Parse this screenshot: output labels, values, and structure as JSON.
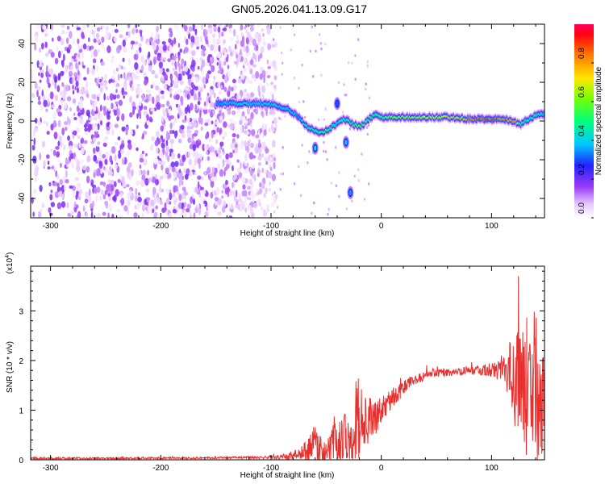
{
  "title": "GN05.2026.041.13.09.G17",
  "chart_data": [
    {
      "type": "heatmap",
      "name": "spectrogram",
      "xlabel": "Height of straight line (km)",
      "ylabel": "Frequency (Hz)",
      "xlim": [
        -318,
        148
      ],
      "ylim": [
        -50,
        50
      ],
      "xticks": [
        -300,
        -200,
        -100,
        0,
        100
      ],
      "yticks": [
        -40,
        -20,
        0,
        20,
        40
      ],
      "colorbar": {
        "label": "Normalized spectral amplitude",
        "range": [
          0,
          1
        ],
        "ticks": [
          "0.0",
          "0.2",
          "0.4",
          "0.6",
          "0.8"
        ],
        "tick_values": [
          0.0,
          0.2,
          0.4,
          0.6,
          0.8
        ]
      },
      "noise_region_x": [
        -318,
        -95
      ],
      "signal_track": {
        "x": [
          -150,
          -130,
          -110,
          -95,
          -85,
          -75,
          -68,
          -60,
          -55,
          -50,
          -45,
          -40,
          -35,
          -30,
          -25,
          -20,
          -15,
          -10,
          -5,
          0,
          20,
          40,
          60,
          80,
          100,
          110,
          120,
          125,
          130,
          140,
          148
        ],
        "freq": [
          9,
          9,
          9,
          8,
          6,
          2,
          -3,
          -5,
          -6,
          -5,
          -3,
          -1,
          1,
          0,
          -2,
          -3,
          -1,
          2,
          3,
          2,
          2,
          2,
          2,
          1,
          1,
          1,
          0,
          -2,
          0,
          3,
          4
        ],
        "amplitude": [
          0.35,
          0.4,
          0.4,
          0.4,
          0.4,
          0.35,
          0.45,
          0.5,
          0.55,
          0.5,
          0.45,
          0.4,
          0.5,
          0.5,
          0.55,
          0.6,
          0.55,
          0.5,
          0.5,
          0.55,
          0.65,
          0.7,
          0.75,
          0.85,
          0.95,
          0.9,
          0.85,
          0.5,
          0.45,
          0.45,
          0.4
        ]
      },
      "isolated_blobs": [
        {
          "x": -60,
          "freq": -14,
          "amplitude": 0.45
        },
        {
          "x": -32,
          "freq": -11,
          "amplitude": 0.4
        },
        {
          "x": -28,
          "freq": -37,
          "amplitude": 0.35
        },
        {
          "x": -40,
          "freq": 9,
          "amplitude": 0.3
        }
      ]
    },
    {
      "type": "line",
      "name": "snr",
      "xlabel": "Height of straight line (km)",
      "ylabel": "SNR (10 * v/v)",
      "yscale_label": "(x10",
      "yscale_exponent": "4",
      "xlim": [
        -318,
        148
      ],
      "ylim": [
        0,
        3.9
      ],
      "xticks": [
        -300,
        -200,
        -100,
        0,
        100
      ],
      "yticks": [
        0,
        1,
        2,
        3
      ],
      "color": "#e8312f",
      "envelope": {
        "x": [
          -318,
          -250,
          -150,
          -100,
          -85,
          -80,
          -75,
          -70,
          -65,
          -60,
          -55,
          -50,
          -45,
          -40,
          -35,
          -30,
          -25,
          -20,
          -15,
          -10,
          -5,
          0,
          10,
          20,
          30,
          40,
          50,
          60,
          70,
          80,
          90,
          100,
          110,
          115,
          120,
          125,
          130,
          135,
          140,
          145,
          148
        ],
        "base": [
          0.03,
          0.03,
          0.04,
          0.05,
          0.06,
          0.1,
          0.12,
          0.15,
          0.22,
          0.35,
          0.25,
          0.12,
          0.3,
          0.25,
          0.45,
          0.5,
          0.7,
          0.85,
          0.75,
          0.8,
          0.85,
          1.0,
          1.25,
          1.45,
          1.6,
          1.7,
          1.75,
          1.75,
          1.78,
          1.8,
          1.8,
          1.82,
          1.85,
          1.7,
          1.6,
          1.6,
          1.5,
          1.4,
          1.3,
          1.2,
          1.1
        ],
        "noise": [
          0.02,
          0.02,
          0.02,
          0.03,
          0.06,
          0.1,
          0.1,
          0.2,
          0.25,
          0.45,
          0.3,
          0.2,
          0.35,
          0.6,
          0.6,
          0.7,
          0.8,
          1.0,
          0.5,
          0.45,
          0.35,
          0.25,
          0.2,
          0.15,
          0.12,
          0.1,
          0.08,
          0.08,
          0.08,
          0.08,
          0.1,
          0.15,
          0.3,
          0.6,
          0.9,
          1.1,
          1.3,
          1.6,
          1.9,
          1.4,
          1.2
        ]
      }
    }
  ]
}
